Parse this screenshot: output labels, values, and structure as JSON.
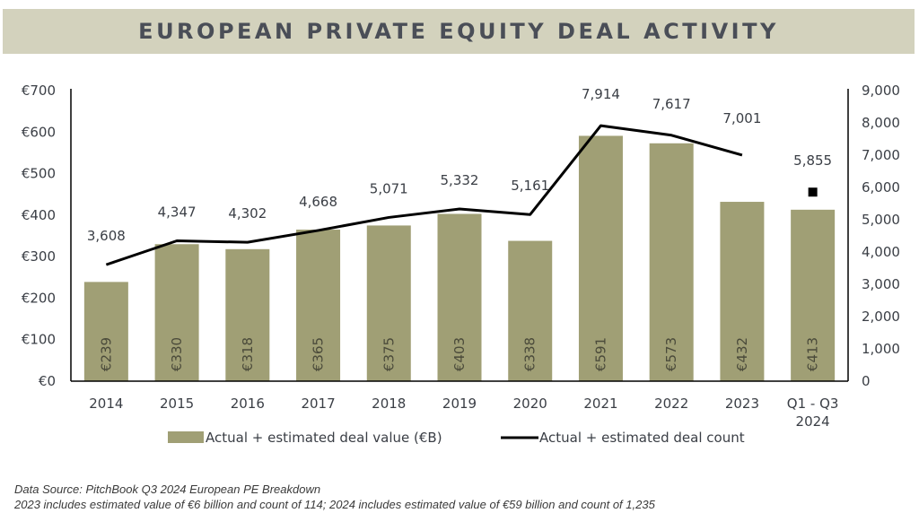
{
  "title": "EUROPEAN PRIVATE EQUITY DEAL ACTIVITY",
  "colors": {
    "title_bg": "#d3d2bd",
    "title_text": "#4a4e57",
    "bar": "#a09f75",
    "line": "#000000",
    "text": "#3a3e45"
  },
  "chart_data": {
    "type": "bar",
    "combo": "bar+line (dual axis)",
    "title": "EUROPEAN PRIVATE EQUITY DEAL ACTIVITY",
    "categories": [
      "2014",
      "2015",
      "2016",
      "2017",
      "2018",
      "2019",
      "2020",
      "2021",
      "2022",
      "2023",
      "Q1 - Q3|2024"
    ],
    "series": [
      {
        "name": "Actual + estimated deal value (€B)",
        "type": "bar",
        "axis": "left",
        "values": [
          239,
          330,
          318,
          365,
          375,
          403,
          338,
          591,
          573,
          432,
          413
        ],
        "labels": [
          "€239",
          "€330",
          "€318",
          "€365",
          "€375",
          "€403",
          "€338",
          "€591",
          "€573",
          "€432",
          "€413"
        ]
      },
      {
        "name": "Actual + estimated deal count",
        "type": "line",
        "axis": "right",
        "values": [
          3608,
          4347,
          4302,
          4668,
          5071,
          5332,
          5161,
          7914,
          7617,
          7001,
          5855
        ],
        "labels": [
          "3,608",
          "4,347",
          "4,302",
          "4,668",
          "5,071",
          "5,332",
          "5,161",
          "7,914",
          "7,617",
          "7,001",
          "5,855"
        ],
        "connected_through_index": 9,
        "last_point_marker": "square"
      }
    ],
    "y_left": {
      "ylim": [
        0,
        700
      ],
      "ticks": [
        0,
        100,
        200,
        300,
        400,
        500,
        600,
        700
      ],
      "tick_labels": [
        "€0",
        "€100",
        "€200",
        "€300",
        "€400",
        "€500",
        "€600",
        "€700"
      ]
    },
    "y_right": {
      "ylim": [
        0,
        9000
      ],
      "ticks": [
        0,
        1000,
        2000,
        3000,
        4000,
        5000,
        6000,
        7000,
        8000,
        9000
      ],
      "tick_labels": [
        "0",
        "1,000",
        "2,000",
        "3,000",
        "4,000",
        "5,000",
        "6,000",
        "7,000",
        "8,000",
        "9,000"
      ]
    },
    "xlabel": "",
    "ylabel": "",
    "grid": false,
    "legend_position": "bottom-center"
  },
  "legend": {
    "bar_label": "Actual + estimated deal value (€B)",
    "line_label": "Actual + estimated deal count"
  },
  "footer": {
    "source": "Data Source:  PitchBook Q3 2024 European PE Breakdown",
    "note": "2023 includes estimated value of €6 billion and count of 114; 2024 includes estimated value of €59 billion and count of 1,235"
  }
}
